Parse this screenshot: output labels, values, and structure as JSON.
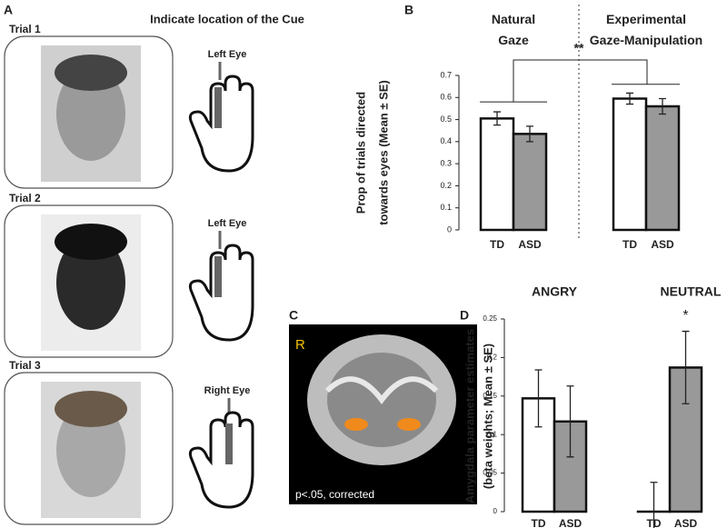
{
  "panels": {
    "a": {
      "letter": "A",
      "title": "Indicate location of the Cue",
      "trials": [
        {
          "label": "Trial 1",
          "cue": "Left Eye"
        },
        {
          "label": "Trial 2",
          "cue": "Left Eye"
        },
        {
          "label": "Trial 3",
          "cue": "Right Eye"
        }
      ]
    },
    "c": {
      "letter": "C",
      "side": "R",
      "note": "p<.05, corrected"
    }
  },
  "chart_data": [
    {
      "type": "bar",
      "letter": "B",
      "categories": [
        "Natural Gaze",
        "Experimental Gaze-Manipulation"
      ],
      "ylabel": [
        "Prop of trials directed",
        "towards eyes (Mean ± SE)"
      ],
      "series": [
        {
          "name": "TD",
          "color": "#ffffff",
          "values": [
            0.505,
            0.595
          ],
          "errors": [
            0.03,
            0.025
          ]
        },
        {
          "name": "ASD",
          "color": "#999999",
          "values": [
            0.435,
            0.56
          ],
          "errors": [
            0.035,
            0.035
          ]
        }
      ],
      "ylim": [
        0,
        0.7
      ],
      "yticks": [
        0,
        0.1,
        0.2,
        0.3,
        0.4,
        0.5,
        0.6,
        0.7
      ],
      "annotations": [
        "**"
      ]
    },
    {
      "type": "bar",
      "letter": "D",
      "categories": [
        "ANGRY",
        "NEUTRAL"
      ],
      "ylabel": [
        "Amygdala parameter estimates",
        "(beta weights; Mean ± SE)"
      ],
      "series": [
        {
          "name": "TD",
          "color": "#ffffff",
          "values": [
            0.147,
            0
          ],
          "errors": [
            0.037,
            0.038
          ]
        },
        {
          "name": "ASD",
          "color": "#999999",
          "values": [
            0.117,
            0.187
          ],
          "errors": [
            0.046,
            0.047
          ]
        }
      ],
      "ylim": [
        0,
        0.25
      ],
      "yticks": [
        0,
        0.05,
        0.1,
        0.15,
        0.2,
        0.25
      ],
      "annotations": [
        "*"
      ]
    }
  ]
}
